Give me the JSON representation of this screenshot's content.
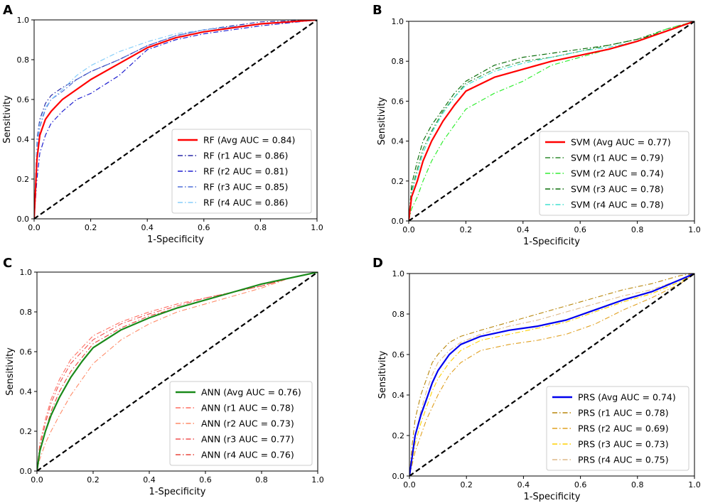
{
  "chart_data": [
    {
      "panel": "A",
      "type": "line",
      "xlabel": "1-Specificity",
      "ylabel": "Sensitivity",
      "xlim": [
        0,
        1
      ],
      "ylim": [
        0,
        1
      ],
      "xticks": [
        "0.0",
        "0.2",
        "0.4",
        "0.6",
        "0.8",
        "1.0"
      ],
      "yticks": [
        "0.0",
        "0.2",
        "0.4",
        "0.6",
        "0.8",
        "1.0"
      ],
      "grid": false,
      "legend_position": "bottom-right",
      "diagonal": {
        "x": [
          0,
          1
        ],
        "y": [
          0,
          1
        ],
        "color": "#000000",
        "style": "dashed"
      },
      "series": [
        {
          "name": "RF (Avg AUC = 0.84)",
          "color": "#ff0000",
          "style": "solid",
          "width": 2.2,
          "x": [
            0,
            0.01,
            0.02,
            0.04,
            0.06,
            0.1,
            0.15,
            0.2,
            0.3,
            0.4,
            0.5,
            0.6,
            0.8,
            1.0
          ],
          "y": [
            0,
            0.3,
            0.42,
            0.5,
            0.54,
            0.6,
            0.65,
            0.7,
            0.78,
            0.86,
            0.91,
            0.94,
            0.98,
            1.0
          ]
        },
        {
          "name": "RF (r1 AUC = 0.86)",
          "color": "#2a2aa8",
          "style": "dashdot",
          "width": 1.2,
          "x": [
            0,
            0.01,
            0.02,
            0.04,
            0.06,
            0.1,
            0.15,
            0.2,
            0.3,
            0.4,
            0.5,
            0.6,
            0.8,
            1.0
          ],
          "y": [
            0,
            0.4,
            0.5,
            0.58,
            0.62,
            0.66,
            0.7,
            0.74,
            0.8,
            0.87,
            0.92,
            0.95,
            0.99,
            1.0
          ]
        },
        {
          "name": "RF (r2 AUC = 0.81)",
          "color": "#1f1fd0",
          "style": "dashdot",
          "width": 1.2,
          "x": [
            0,
            0.01,
            0.02,
            0.04,
            0.06,
            0.1,
            0.15,
            0.2,
            0.3,
            0.4,
            0.5,
            0.6,
            0.8,
            1.0
          ],
          "y": [
            0,
            0.2,
            0.33,
            0.42,
            0.48,
            0.54,
            0.6,
            0.63,
            0.72,
            0.85,
            0.9,
            0.93,
            0.97,
            1.0
          ]
        },
        {
          "name": "RF (r3 AUC = 0.85)",
          "color": "#4f6fd8",
          "style": "dashdot",
          "width": 1.2,
          "x": [
            0,
            0.01,
            0.02,
            0.04,
            0.06,
            0.1,
            0.15,
            0.2,
            0.3,
            0.4,
            0.5,
            0.6,
            0.8,
            1.0
          ],
          "y": [
            0,
            0.35,
            0.46,
            0.55,
            0.6,
            0.64,
            0.7,
            0.74,
            0.8,
            0.87,
            0.92,
            0.95,
            0.98,
            1.0
          ]
        },
        {
          "name": "RF (r4 AUC = 0.86)",
          "color": "#87cefa",
          "style": "dashdot",
          "width": 1.2,
          "x": [
            0,
            0.01,
            0.02,
            0.04,
            0.06,
            0.1,
            0.15,
            0.2,
            0.3,
            0.4,
            0.5,
            0.6,
            0.8,
            1.0
          ],
          "y": [
            0,
            0.38,
            0.48,
            0.56,
            0.6,
            0.65,
            0.72,
            0.77,
            0.84,
            0.89,
            0.93,
            0.95,
            0.98,
            1.0
          ]
        }
      ]
    },
    {
      "panel": "B",
      "type": "line",
      "xlabel": "1-Specificity",
      "ylabel": "Sensitivity",
      "xlim": [
        0,
        1
      ],
      "ylim": [
        0,
        1
      ],
      "xticks": [
        "0.0",
        "0.2",
        "0.4",
        "0.6",
        "0.8",
        "1.0"
      ],
      "yticks": [
        "0.0",
        "0.2",
        "0.4",
        "0.6",
        "0.8",
        "1.0"
      ],
      "grid": false,
      "legend_position": "bottom-right",
      "diagonal": {
        "x": [
          0,
          1
        ],
        "y": [
          0,
          1
        ],
        "color": "#000000",
        "style": "dashed"
      },
      "series": [
        {
          "name": "SVM (Avg AUC = 0.77)",
          "color": "#ff0000",
          "style": "solid",
          "width": 2.2,
          "x": [
            0,
            0.01,
            0.03,
            0.05,
            0.08,
            0.12,
            0.16,
            0.2,
            0.3,
            0.4,
            0.5,
            0.6,
            0.7,
            0.8,
            0.9,
            1.0
          ],
          "y": [
            0,
            0.12,
            0.2,
            0.3,
            0.4,
            0.5,
            0.58,
            0.65,
            0.72,
            0.76,
            0.8,
            0.83,
            0.86,
            0.9,
            0.95,
            1.0
          ]
        },
        {
          "name": "SVM (r1 AUC = 0.79)",
          "color": "#2e8b2e",
          "style": "dashdot",
          "width": 1.2,
          "x": [
            0,
            0.01,
            0.03,
            0.05,
            0.08,
            0.12,
            0.16,
            0.2,
            0.3,
            0.4,
            0.5,
            0.6,
            0.7,
            0.8,
            0.9,
            1.0
          ],
          "y": [
            0,
            0.15,
            0.26,
            0.36,
            0.45,
            0.55,
            0.62,
            0.69,
            0.76,
            0.8,
            0.82,
            0.85,
            0.88,
            0.91,
            0.96,
            1.0
          ]
        },
        {
          "name": "SVM (r2 AUC = 0.74)",
          "color": "#33ee33",
          "style": "dashdot",
          "width": 1.2,
          "x": [
            0,
            0.01,
            0.03,
            0.05,
            0.08,
            0.12,
            0.16,
            0.2,
            0.3,
            0.4,
            0.5,
            0.6,
            0.7,
            0.8,
            0.9,
            1.0
          ],
          "y": [
            0,
            0.06,
            0.12,
            0.2,
            0.3,
            0.4,
            0.48,
            0.56,
            0.64,
            0.7,
            0.78,
            0.82,
            0.86,
            0.9,
            0.96,
            1.0
          ]
        },
        {
          "name": "SVM (r3 AUC = 0.78)",
          "color": "#0a6e0a",
          "style": "dashdot",
          "width": 1.2,
          "x": [
            0,
            0.01,
            0.03,
            0.05,
            0.08,
            0.12,
            0.16,
            0.2,
            0.3,
            0.4,
            0.5,
            0.6,
            0.7,
            0.8,
            0.9,
            1.0
          ],
          "y": [
            0,
            0.18,
            0.3,
            0.4,
            0.48,
            0.56,
            0.64,
            0.7,
            0.78,
            0.82,
            0.84,
            0.86,
            0.88,
            0.91,
            0.95,
            1.0
          ]
        },
        {
          "name": "SVM (r4 AUC = 0.78)",
          "color": "#40e0d0",
          "style": "dashdot",
          "width": 1.2,
          "x": [
            0,
            0.01,
            0.03,
            0.05,
            0.08,
            0.12,
            0.16,
            0.2,
            0.3,
            0.4,
            0.5,
            0.6,
            0.7,
            0.8,
            0.9,
            1.0
          ],
          "y": [
            0,
            0.14,
            0.24,
            0.34,
            0.44,
            0.54,
            0.62,
            0.68,
            0.75,
            0.79,
            0.82,
            0.85,
            0.87,
            0.9,
            0.95,
            1.0
          ]
        }
      ]
    },
    {
      "panel": "C",
      "type": "line",
      "xlabel": "1-Specificity",
      "ylabel": "Sensitivity",
      "xlim": [
        0,
        1
      ],
      "ylim": [
        0,
        1
      ],
      "xticks": [
        "0.0",
        "0.2",
        "0.4",
        "0.6",
        "0.8",
        "1.0"
      ],
      "yticks": [
        "0.0",
        "0.2",
        "0.4",
        "0.6",
        "0.8",
        "1.0"
      ],
      "grid": false,
      "legend_position": "bottom-right",
      "diagonal": {
        "x": [
          0,
          1
        ],
        "y": [
          0,
          1
        ],
        "color": "#000000",
        "style": "dashed"
      },
      "series": [
        {
          "name": "ANN (Avg AUC = 0.76)",
          "color": "#1a8a1a",
          "style": "solid",
          "width": 2.2,
          "x": [
            0,
            0.01,
            0.03,
            0.05,
            0.08,
            0.12,
            0.16,
            0.2,
            0.3,
            0.4,
            0.5,
            0.6,
            0.7,
            0.8,
            0.9,
            1.0
          ],
          "y": [
            0,
            0.1,
            0.2,
            0.28,
            0.37,
            0.47,
            0.55,
            0.62,
            0.71,
            0.77,
            0.82,
            0.86,
            0.9,
            0.94,
            0.97,
            1.0
          ]
        },
        {
          "name": "ANN (r1 AUC = 0.78)",
          "color": "#ff6f61",
          "style": "dashdot",
          "width": 1.1,
          "x": [
            0,
            0.01,
            0.03,
            0.05,
            0.08,
            0.12,
            0.16,
            0.2,
            0.3,
            0.4,
            0.5,
            0.6,
            0.7,
            0.8,
            0.9,
            1.0
          ],
          "y": [
            0,
            0.14,
            0.26,
            0.36,
            0.46,
            0.56,
            0.62,
            0.68,
            0.75,
            0.8,
            0.84,
            0.87,
            0.9,
            0.94,
            0.97,
            1.0
          ]
        },
        {
          "name": "ANN (r2 AUC = 0.73)",
          "color": "#ff8c69",
          "style": "dashdot",
          "width": 1.1,
          "x": [
            0,
            0.01,
            0.03,
            0.05,
            0.08,
            0.12,
            0.16,
            0.2,
            0.3,
            0.4,
            0.5,
            0.6,
            0.7,
            0.8,
            0.9,
            1.0
          ],
          "y": [
            0,
            0.06,
            0.14,
            0.2,
            0.28,
            0.38,
            0.46,
            0.54,
            0.66,
            0.74,
            0.8,
            0.84,
            0.88,
            0.92,
            0.97,
            1.0
          ]
        },
        {
          "name": "ANN (r3 AUC = 0.77)",
          "color": "#f05050",
          "style": "dashdot",
          "width": 1.1,
          "x": [
            0,
            0.01,
            0.03,
            0.05,
            0.08,
            0.12,
            0.16,
            0.2,
            0.3,
            0.4,
            0.5,
            0.6,
            0.7,
            0.8,
            0.9,
            1.0
          ],
          "y": [
            0,
            0.12,
            0.24,
            0.34,
            0.44,
            0.54,
            0.6,
            0.66,
            0.74,
            0.79,
            0.83,
            0.87,
            0.9,
            0.93,
            0.97,
            1.0
          ]
        },
        {
          "name": "ANN (r4 AUC = 0.76)",
          "color": "#e8453c",
          "style": "dashdot",
          "width": 1.1,
          "x": [
            0,
            0.01,
            0.03,
            0.05,
            0.08,
            0.12,
            0.16,
            0.2,
            0.3,
            0.4,
            0.5,
            0.6,
            0.7,
            0.8,
            0.9,
            1.0
          ],
          "y": [
            0,
            0.1,
            0.2,
            0.3,
            0.4,
            0.5,
            0.57,
            0.64,
            0.72,
            0.78,
            0.82,
            0.86,
            0.9,
            0.93,
            0.97,
            1.0
          ]
        }
      ]
    },
    {
      "panel": "D",
      "type": "line",
      "xlabel": "1-Specificity",
      "ylabel": "Sensitivity",
      "xlim": [
        0,
        1
      ],
      "ylim": [
        0,
        1
      ],
      "xticks": [
        "0.0",
        "0.2",
        "0.4",
        "0.6",
        "0.8",
        "1.0"
      ],
      "yticks": [
        "0.0",
        "0.2",
        "0.4",
        "0.6",
        "0.8",
        "1.0"
      ],
      "grid": false,
      "legend_position": "bottom-right",
      "diagonal": {
        "x": [
          0,
          1
        ],
        "y": [
          0,
          1
        ],
        "color": "#000000",
        "style": "dashed"
      },
      "series": [
        {
          "name": "PRS (Avg AUC = 0.74)",
          "color": "#0000ee",
          "style": "solid",
          "width": 2.2,
          "x": [
            0,
            0.01,
            0.02,
            0.04,
            0.06,
            0.08,
            0.1,
            0.14,
            0.18,
            0.25,
            0.35,
            0.45,
            0.55,
            0.65,
            0.75,
            0.85,
            0.95,
            1.0
          ],
          "y": [
            0,
            0.1,
            0.2,
            0.3,
            0.38,
            0.46,
            0.52,
            0.6,
            0.65,
            0.69,
            0.72,
            0.74,
            0.77,
            0.82,
            0.87,
            0.91,
            0.97,
            1.0
          ]
        },
        {
          "name": "PRS (r1 AUC = 0.78)",
          "color": "#b8860b",
          "style": "dashdot",
          "width": 1.1,
          "x": [
            0,
            0.01,
            0.02,
            0.04,
            0.06,
            0.08,
            0.1,
            0.14,
            0.18,
            0.25,
            0.35,
            0.45,
            0.55,
            0.65,
            0.75,
            0.85,
            0.95,
            1.0
          ],
          "y": [
            0,
            0.16,
            0.28,
            0.4,
            0.48,
            0.56,
            0.6,
            0.66,
            0.69,
            0.72,
            0.76,
            0.8,
            0.84,
            0.88,
            0.92,
            0.95,
            0.99,
            1.0
          ]
        },
        {
          "name": "PRS (r2 AUC = 0.69)",
          "color": "#e0a020",
          "style": "dashdot",
          "width": 1.1,
          "x": [
            0,
            0.01,
            0.02,
            0.04,
            0.06,
            0.08,
            0.1,
            0.14,
            0.18,
            0.25,
            0.35,
            0.45,
            0.55,
            0.65,
            0.75,
            0.85,
            0.95,
            1.0
          ],
          "y": [
            0,
            0.06,
            0.12,
            0.2,
            0.28,
            0.34,
            0.4,
            0.5,
            0.56,
            0.62,
            0.65,
            0.67,
            0.7,
            0.75,
            0.82,
            0.88,
            0.95,
            1.0
          ]
        },
        {
          "name": "PRS (r3 AUC = 0.73)",
          "color": "#ffd000",
          "style": "dashdot",
          "width": 1.1,
          "x": [
            0,
            0.01,
            0.02,
            0.04,
            0.06,
            0.08,
            0.1,
            0.14,
            0.18,
            0.25,
            0.35,
            0.45,
            0.55,
            0.65,
            0.75,
            0.85,
            0.95,
            1.0
          ],
          "y": [
            0,
            0.08,
            0.16,
            0.26,
            0.34,
            0.42,
            0.48,
            0.56,
            0.62,
            0.67,
            0.7,
            0.73,
            0.76,
            0.81,
            0.86,
            0.9,
            0.96,
            1.0
          ]
        },
        {
          "name": "PRS (r4 AUC = 0.75)",
          "color": "#deb887",
          "style": "dashdot",
          "width": 1.1,
          "x": [
            0,
            0.01,
            0.02,
            0.04,
            0.06,
            0.08,
            0.1,
            0.14,
            0.18,
            0.25,
            0.35,
            0.45,
            0.55,
            0.65,
            0.75,
            0.85,
            0.95,
            1.0
          ],
          "y": [
            0,
            0.1,
            0.2,
            0.32,
            0.42,
            0.5,
            0.56,
            0.62,
            0.66,
            0.7,
            0.74,
            0.77,
            0.81,
            0.85,
            0.89,
            0.92,
            0.97,
            1.0
          ]
        }
      ]
    }
  ]
}
